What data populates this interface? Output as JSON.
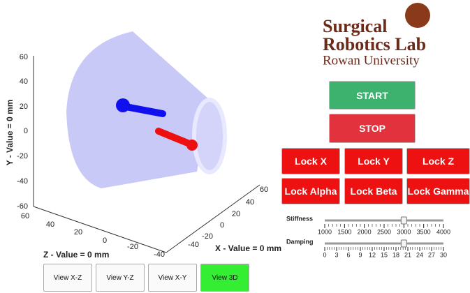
{
  "logo": {
    "line1": "Surgical",
    "line2": "Robotics Lab",
    "line3": "Rowan University"
  },
  "plot": {
    "y_axis_label": "Y - Value = 0 mm",
    "z_axis_label": "Z - Value = 0 mm",
    "x_axis_label": "X - Value = 0 mm",
    "y_ticks": [
      60,
      40,
      20,
      0,
      -20,
      -40,
      -60
    ],
    "z_ticks": [
      60,
      40,
      20,
      0,
      -20,
      -40
    ],
    "x_ticks": [
      60,
      40,
      20,
      0,
      -20,
      -40
    ]
  },
  "controls": {
    "start": "START",
    "stop": "STOP",
    "locks": [
      "Lock X",
      "Lock Y",
      "Lock Z",
      "Lock Alpha",
      "Lock Beta",
      "Lock Gamma"
    ]
  },
  "sliders": [
    {
      "label": "Stiffness",
      "ticks": [
        1000,
        1500,
        2000,
        2500,
        3000,
        3500,
        4000
      ],
      "value": 3000
    },
    {
      "label": "Damping",
      "ticks": [
        0,
        3,
        6,
        9,
        12,
        15,
        18,
        21,
        24,
        27,
        30
      ],
      "value": 20
    }
  ],
  "views": [
    "View X-Z",
    "View Y-Z",
    "View X-Y",
    "View 3D"
  ]
}
